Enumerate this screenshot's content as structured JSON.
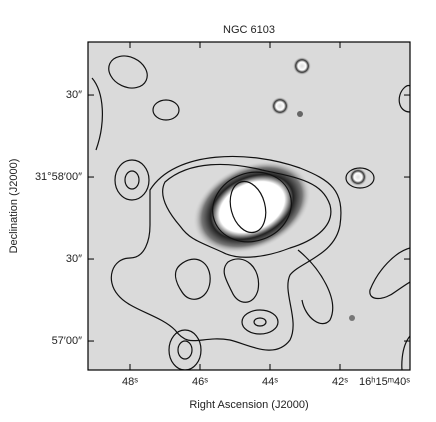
{
  "chart_data": {
    "type": "image",
    "title": "NGC 6103",
    "xlabel": "Right Ascension (J2000)",
    "ylabel": "Declination (J2000)",
    "xlim": [
      49.2,
      40
    ],
    "ylim": [
      -70.6,
      49.4
    ],
    "xticks": [
      {
        "value": 48,
        "label": "48ˢ"
      },
      {
        "value": 46,
        "label": "46ˢ"
      },
      {
        "value": 44,
        "label": "44ˢ"
      },
      {
        "value": 42,
        "label": "42ˢ"
      },
      {
        "value": 40,
        "label": "16ʰ15ᵐ40ˢ"
      }
    ],
    "yticks": [
      {
        "value": 30,
        "label": "30″"
      },
      {
        "value": 0,
        "label": "31°58′00″"
      },
      {
        "value": -30,
        "label": "30″"
      },
      {
        "value": -60,
        "label": "57′00″"
      }
    ]
  }
}
